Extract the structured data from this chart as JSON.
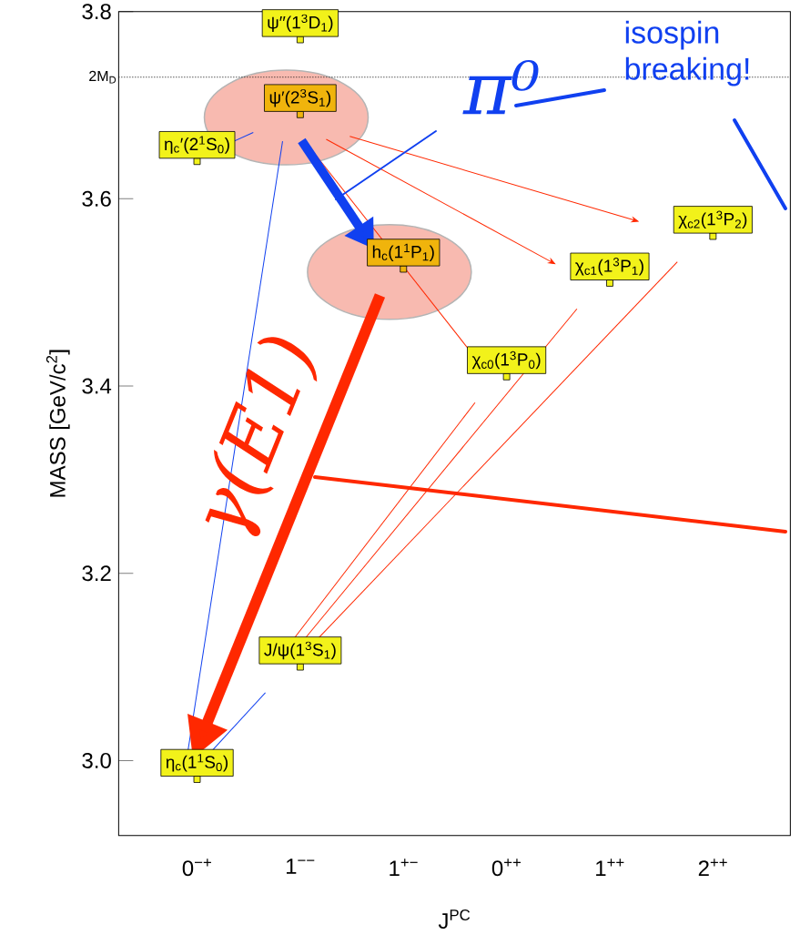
{
  "chart_data": {
    "type": "scatter",
    "xlabel": "J$^{PC}$",
    "ylabel": "MASS   [GeV/c$^{2}$]",
    "categories": [
      "0$^{−+}$",
      "1$^{−−}$",
      "1$^{+−}$",
      "0$^{++}$",
      "1$^{++}$",
      "2$^{++}$"
    ],
    "series": [
      {
        "values": [
          2.98,
          3.1,
          3.525,
          3.41,
          3.51,
          3.56
        ],
        "colors": [
          "#f2f21a",
          "#f2f21a",
          "#f0b40c",
          "#f2f21a",
          "#f2f21a",
          "#f2f21a"
        ],
        "value_labels": [
          "η$_{c}$(1$^{1}$S$_{0}$)",
          "J/ψ(1$^{3}$S$_{1}$)",
          "h$_{c}$(1$^{1}$P$_{1}$)",
          "χ$_{c0}$(1$^{3}$P$_{0}$)",
          "χ$_{c1}$(1$^{3}$P$_{1}$)",
          "χ$_{c2}$(1$^{3}$P$_{2}$)"
        ]
      },
      {
        "values": [
          3.64,
          3.69,
          null,
          null,
          null,
          null
        ],
        "colors": [
          "#f2f21a",
          "#f0b40c",
          null,
          null,
          null,
          null
        ],
        "value_labels": [
          "η$_{c}$′(2$^{1}$S$_{0}$)",
          "ψ′(2$^{3}$S$_{1}$)",
          null,
          null,
          null,
          null
        ]
      },
      {
        "values": [
          null,
          3.77,
          null,
          null,
          null,
          null
        ],
        "colors": [
          null,
          "#f2f21a",
          null,
          null,
          null,
          null
        ],
        "value_labels": [
          null,
          "ψ′′(1$^{3}$D$_{1}$)",
          null,
          null,
          null,
          null
        ]
      }
    ],
    "marker": "square",
    "ylim": [
      2.92,
      3.8
    ],
    "yticks": [
      {
        "value": 3.0,
        "label": "3.0"
      },
      {
        "value": 3.2,
        "label": "3.2"
      },
      {
        "value": 3.4,
        "label": "3.4"
      },
      {
        "value": 3.6,
        "label": "3.6"
      },
      {
        "value": 3.8,
        "label": "3.8"
      }
    ],
    "ref_lines": [
      {
        "axis": "y",
        "value": 3.73,
        "label": "2M$_{D}$",
        "line_style": "dotted",
        "color": "#000000"
      }
    ],
    "annotations": [
      "π⁰",
      "isospin breaking!",
      "γ(E1)"
    ]
  }
}
